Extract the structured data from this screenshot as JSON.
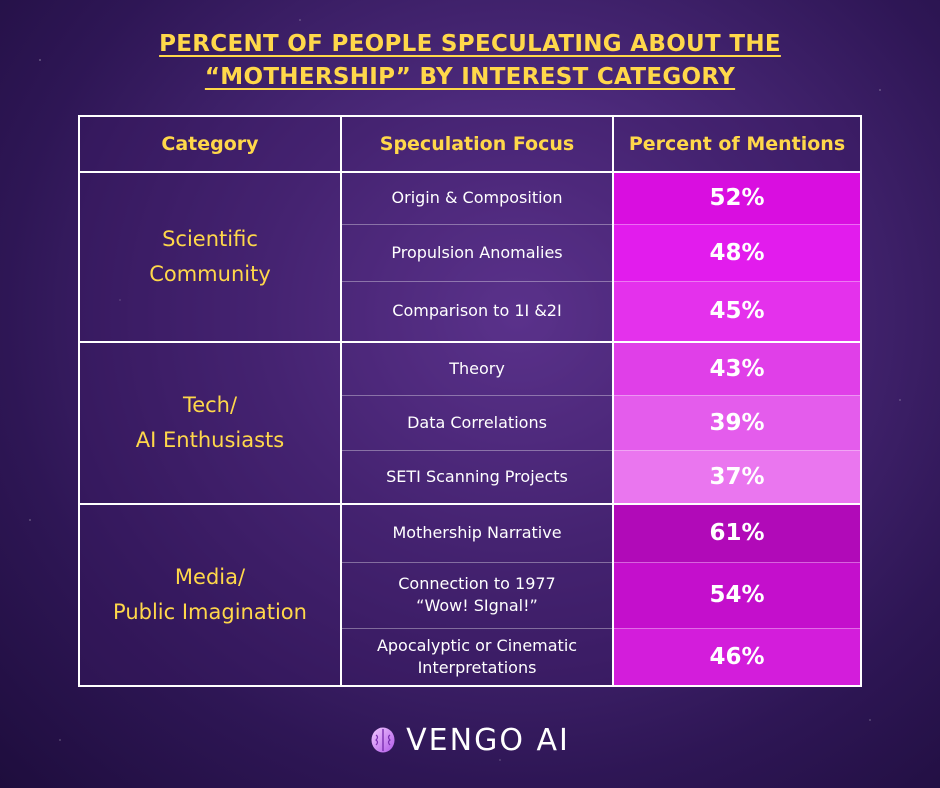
{
  "title_line1": "PERCENT OF PEOPLE SPECULATING ABOUT THE",
  "title_line2": "“MOTHERSHIP” BY INTEREST CATEGORY",
  "brand": "VENGO AI",
  "chart_data": {
    "type": "table",
    "title": "PERCENT OF PEOPLE SPECULATING ABOUT THE “MOTHERSHIP” BY INTEREST CATEGORY",
    "columns": [
      "Category",
      "Speculation Focus",
      "Percent of Mentions"
    ],
    "groups": [
      {
        "category": [
          "Scientific",
          "Community"
        ],
        "rows": [
          {
            "focus": [
              "Origin & Composition"
            ],
            "percent": 52,
            "label": "52%",
            "color": "#d90ee0"
          },
          {
            "focus": [
              "Propulsion Anomalies"
            ],
            "percent": 48,
            "label": "48%",
            "color": "#e21ced"
          },
          {
            "focus": [
              "Comparison to 1I &2I"
            ],
            "percent": 45,
            "label": "45%",
            "color": "#e431ec"
          }
        ]
      },
      {
        "category": [
          "Tech/",
          "AI Enthusiasts"
        ],
        "rows": [
          {
            "focus": [
              "Theory"
            ],
            "percent": 43,
            "label": "43%",
            "color": "#e03fe8"
          },
          {
            "focus": [
              "Data Correlations"
            ],
            "percent": 39,
            "label": "39%",
            "color": "#e45cec"
          },
          {
            "focus": [
              "SETI Scanning Projects"
            ],
            "percent": 37,
            "label": "37%",
            "color": "#ea76ef"
          }
        ]
      },
      {
        "category": [
          "Media/",
          "Public Imagination"
        ],
        "rows": [
          {
            "focus": [
              "Mothership Narrative"
            ],
            "percent": 61,
            "label": "61%",
            "color": "#b10ab8"
          },
          {
            "focus": [
              "Connection to 1977",
              "“Wow! SIgnal!”"
            ],
            "percent": 54,
            "label": "54%",
            "color": "#c40fcc"
          },
          {
            "focus": [
              "Apocalyptic or Cinematic",
              "Interpretations"
            ],
            "percent": 46,
            "label": "46%",
            "color": "#d31ddb"
          }
        ]
      }
    ]
  }
}
